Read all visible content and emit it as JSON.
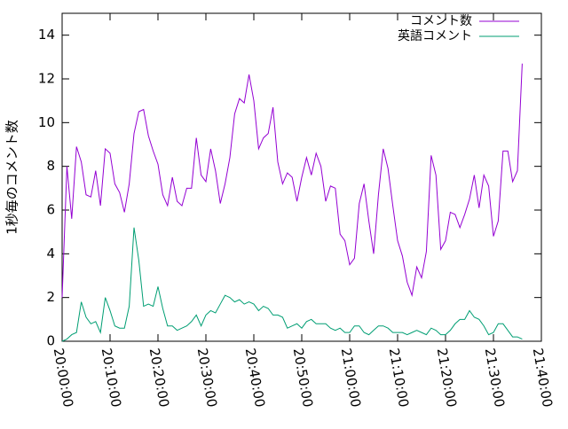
{
  "chart_data": {
    "type": "line",
    "ylabel": "1秒毎のコメント数",
    "x": [
      "20:00:00",
      "20:01:00",
      "20:02:00",
      "20:03:00",
      "20:04:00",
      "20:05:00",
      "20:06:00",
      "20:07:00",
      "20:08:00",
      "20:09:00",
      "20:10:00",
      "20:11:00",
      "20:12:00",
      "20:13:00",
      "20:14:00",
      "20:15:00",
      "20:16:00",
      "20:17:00",
      "20:18:00",
      "20:19:00",
      "20:20:00",
      "20:21:00",
      "20:22:00",
      "20:23:00",
      "20:24:00",
      "20:25:00",
      "20:26:00",
      "20:27:00",
      "20:28:00",
      "20:29:00",
      "20:30:00",
      "20:31:00",
      "20:32:00",
      "20:33:00",
      "20:34:00",
      "20:35:00",
      "20:36:00",
      "20:37:00",
      "20:38:00",
      "20:39:00",
      "20:40:00",
      "20:41:00",
      "20:42:00",
      "20:43:00",
      "20:44:00",
      "20:45:00",
      "20:46:00",
      "20:47:00",
      "20:48:00",
      "20:49:00",
      "20:50:00",
      "20:51:00",
      "20:52:00",
      "20:53:00",
      "20:54:00",
      "20:55:00",
      "20:56:00",
      "20:57:00",
      "20:58:00",
      "20:59:00",
      "21:00:00",
      "21:01:00",
      "21:02:00",
      "21:03:00",
      "21:04:00",
      "21:05:00",
      "21:06:00",
      "21:07:00",
      "21:08:00",
      "21:09:00",
      "21:10:00",
      "21:11:00",
      "21:12:00",
      "21:13:00",
      "21:14:00",
      "21:15:00",
      "21:16:00",
      "21:17:00",
      "21:18:00",
      "21:19:00",
      "21:20:00",
      "21:21:00",
      "21:22:00",
      "21:23:00",
      "21:24:00",
      "21:25:00",
      "21:26:00",
      "21:27:00",
      "21:28:00",
      "21:29:00",
      "21:30:00",
      "21:31:00",
      "21:32:00",
      "21:33:00",
      "21:34:00",
      "21:35:00",
      "21:36:00"
    ],
    "series": [
      {
        "name": "コメント数",
        "color": "#9400d3",
        "values": [
          2.0,
          8.0,
          5.6,
          8.9,
          8.2,
          6.7,
          6.6,
          7.8,
          6.2,
          8.8,
          8.6,
          7.2,
          6.8,
          5.9,
          7.2,
          9.5,
          10.5,
          10.6,
          9.4,
          8.7,
          8.1,
          6.7,
          6.2,
          7.5,
          6.4,
          6.2,
          7.0,
          7.0,
          9.3,
          7.6,
          7.3,
          8.8,
          7.8,
          6.3,
          7.2,
          8.4,
          10.4,
          11.1,
          10.9,
          12.2,
          11.0,
          8.8,
          9.3,
          9.5,
          10.7,
          8.2,
          7.2,
          7.7,
          7.5,
          6.4,
          7.5,
          8.4,
          7.6,
          8.6,
          8.0,
          6.4,
          7.1,
          7.0,
          4.9,
          4.6,
          3.5,
          3.8,
          6.3,
          7.2,
          5.5,
          4.0,
          6.7,
          8.8,
          7.9,
          6.2,
          4.6,
          3.9,
          2.7,
          2.1,
          3.4,
          2.9,
          4.1,
          8.5,
          7.6,
          4.2,
          4.6,
          5.9,
          5.8,
          5.2,
          5.8,
          6.5,
          7.6,
          6.1,
          7.6,
          7.1,
          4.8,
          5.5,
          8.7,
          8.7,
          7.3,
          7.8,
          12.7
        ]
      },
      {
        "name": "英語コメント",
        "color": "#009e73",
        "values": [
          0.0,
          0.1,
          0.3,
          0.4,
          1.8,
          1.1,
          0.8,
          0.9,
          0.4,
          2.0,
          1.4,
          0.7,
          0.6,
          0.6,
          1.6,
          5.2,
          3.7,
          1.6,
          1.7,
          1.6,
          2.5,
          1.5,
          0.7,
          0.7,
          0.5,
          0.6,
          0.7,
          0.9,
          1.2,
          0.7,
          1.2,
          1.4,
          1.3,
          1.7,
          2.1,
          2.0,
          1.8,
          1.9,
          1.7,
          1.8,
          1.7,
          1.4,
          1.6,
          1.5,
          1.2,
          1.2,
          1.1,
          0.6,
          0.7,
          0.8,
          0.6,
          0.9,
          1.0,
          0.8,
          0.8,
          0.8,
          0.6,
          0.5,
          0.6,
          0.4,
          0.4,
          0.7,
          0.7,
          0.4,
          0.3,
          0.5,
          0.7,
          0.7,
          0.6,
          0.4,
          0.4,
          0.4,
          0.3,
          0.4,
          0.5,
          0.4,
          0.3,
          0.6,
          0.5,
          0.3,
          0.3,
          0.5,
          0.8,
          1.0,
          1.0,
          1.4,
          1.1,
          1.0,
          0.7,
          0.3,
          0.4,
          0.8,
          0.8,
          0.5,
          0.2,
          0.2,
          0.1
        ]
      }
    ],
    "xlim": [
      "20:00:00",
      "21:40:00"
    ],
    "xticks": [
      "20:00:00",
      "20:10:00",
      "20:20:00",
      "20:30:00",
      "20:40:00",
      "20:50:00",
      "21:00:00",
      "21:10:00",
      "21:20:00",
      "21:30:00",
      "21:40:00"
    ],
    "ylim": [
      0,
      15
    ],
    "yticks": [
      0,
      2,
      4,
      6,
      8,
      10,
      12,
      14
    ],
    "legend": "top-right"
  }
}
